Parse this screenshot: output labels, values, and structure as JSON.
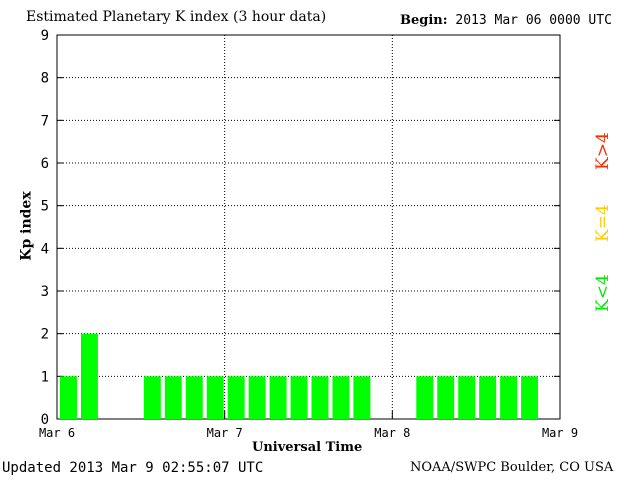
{
  "header": {
    "title": "Estimated Planetary K index (3 hour data)",
    "begin_label": "Begin:",
    "begin_value": "2013 Mar 06 0000 UTC"
  },
  "footer": {
    "updated": "Updated 2013 Mar  9 02:55:07 UTC",
    "organization": "NOAA/SWPC Boulder, CO USA"
  },
  "legend": {
    "high": {
      "label": "K>4",
      "color": "#ff2a00"
    },
    "equal": {
      "label": "K=4",
      "color": "#ffcc00"
    },
    "low": {
      "label": "K<4",
      "color": "#00ee00"
    }
  },
  "chart_data": {
    "type": "bar",
    "xlabel": "Universal Time",
    "ylabel": "Kp index",
    "ylim": [
      0,
      9
    ],
    "yticks": [
      0,
      1,
      2,
      3,
      4,
      5,
      6,
      7,
      8,
      9
    ],
    "xticks": [
      "Mar 6",
      "Mar 7",
      "Mar 8",
      "Mar 9"
    ],
    "grid": true,
    "bar_color": "#00ff00",
    "interval_hours": 3,
    "values": [
      1,
      2,
      0,
      0,
      1,
      1,
      1,
      1,
      1,
      1,
      1,
      1,
      1,
      1,
      1,
      0,
      0,
      1,
      1,
      1,
      1,
      1,
      1
    ]
  }
}
